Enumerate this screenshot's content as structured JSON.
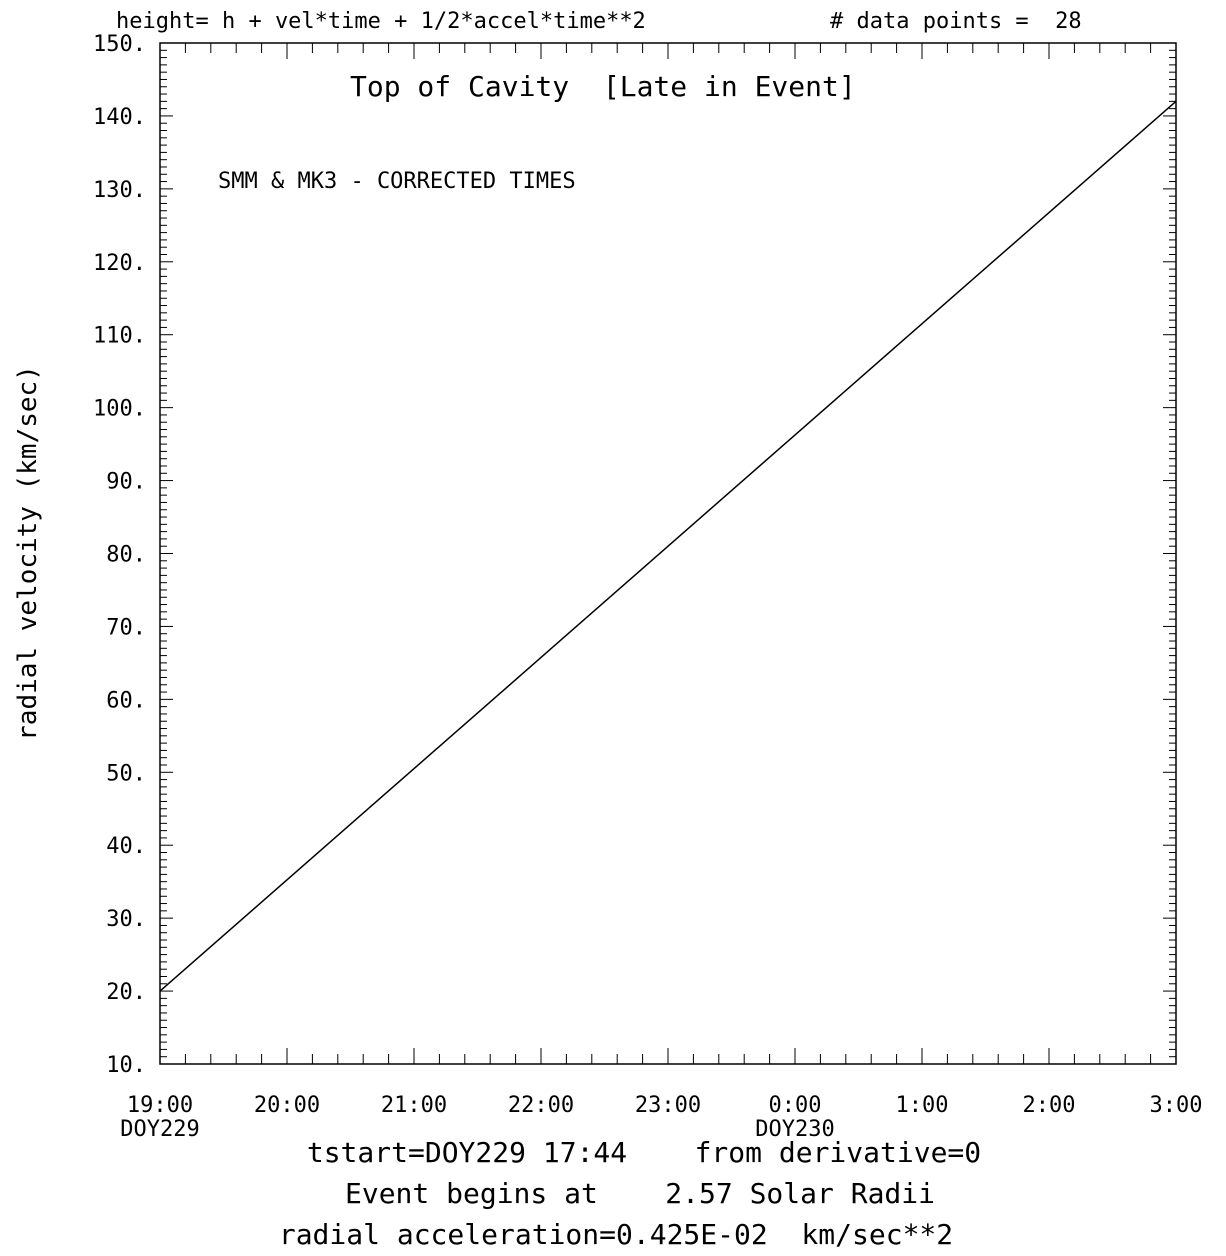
{
  "header": {
    "formula": "height= h + vel*time + 1/2*accel*time**2",
    "data_points": "# data points =  28"
  },
  "chart_data": {
    "type": "line",
    "title": "Top of Cavity  [Late in Event]",
    "annotation": "SMM & MK3 - CORRECTED TIMES",
    "ylabel": "radial velocity (km/sec)",
    "xlabel": "",
    "ylim": [
      10,
      150
    ],
    "xlim": [
      "19:00",
      "3:00"
    ],
    "y_ticks": [
      {
        "value": 10,
        "label": "10."
      },
      {
        "value": 20,
        "label": "20."
      },
      {
        "value": 30,
        "label": "30."
      },
      {
        "value": 40,
        "label": "40."
      },
      {
        "value": 50,
        "label": "50."
      },
      {
        "value": 60,
        "label": "60."
      },
      {
        "value": 70,
        "label": "70."
      },
      {
        "value": 80,
        "label": "80."
      },
      {
        "value": 90,
        "label": "90."
      },
      {
        "value": 100,
        "label": "100."
      },
      {
        "value": 110,
        "label": "110."
      },
      {
        "value": 120,
        "label": "120."
      },
      {
        "value": 130,
        "label": "130."
      },
      {
        "value": 140,
        "label": "140."
      },
      {
        "value": 150,
        "label": "150."
      }
    ],
    "x_ticks": [
      {
        "label": "19:00",
        "sub": "DOY229"
      },
      {
        "label": "20:00",
        "sub": ""
      },
      {
        "label": "21:00",
        "sub": ""
      },
      {
        "label": "22:00",
        "sub": ""
      },
      {
        "label": "23:00",
        "sub": ""
      },
      {
        "label": "0:00",
        "sub": "DOY230"
      },
      {
        "label": "1:00",
        "sub": ""
      },
      {
        "label": "2:00",
        "sub": ""
      },
      {
        "label": "3:00",
        "sub": ""
      }
    ],
    "series": [
      {
        "x": [
          "19:00",
          "3:00"
        ],
        "y": [
          20,
          142
        ]
      }
    ],
    "grid": false
  },
  "footer": {
    "line1": "tstart=DOY229 17:44    from derivative=0",
    "line2": "Event begins at    2.57 Solar Radii",
    "line3": "radial acceleration=0.425E-02  km/sec**2"
  }
}
